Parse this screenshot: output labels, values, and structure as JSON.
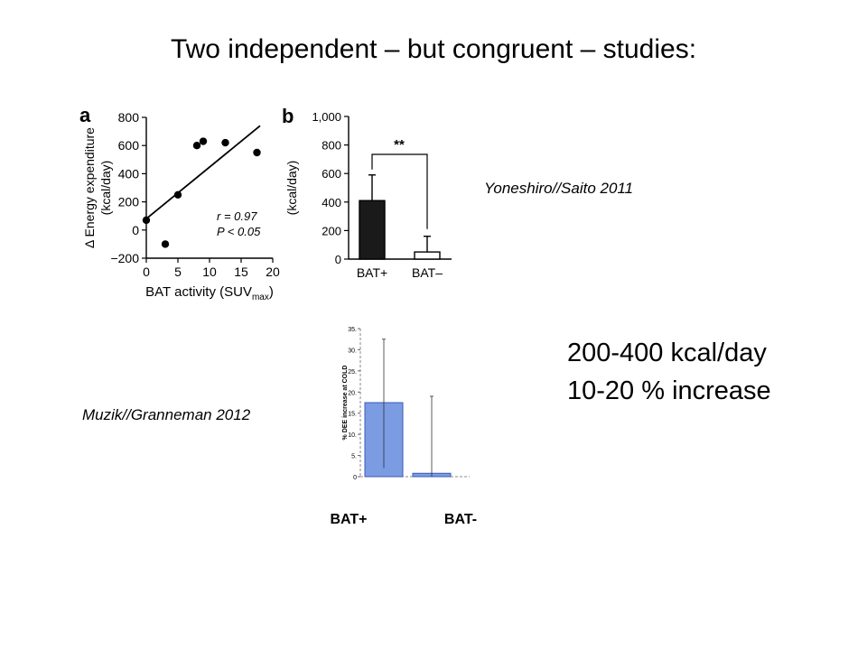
{
  "slide": {
    "title": "Two independent – but congruent – studies:",
    "caption_top": "Yoneshiro//Saito 2011",
    "caption_bottom": "Muzik//Granneman 2012",
    "highlight_line1": "200-400 kcal/day",
    "highlight_line2": "10-20 % increase"
  },
  "chart_data": [
    {
      "type": "scatter",
      "panel_label": "a",
      "xlabel": "BAT activity (SUVmax)",
      "ylabel_line1": "Δ Energy expenditure",
      "ylabel_line2": "(kcal/day)",
      "xlim": [
        0,
        20
      ],
      "ylim": [
        -200,
        800
      ],
      "xticks": [
        0,
        5,
        10,
        15,
        20
      ],
      "yticks": [
        -200,
        0,
        200,
        400,
        600,
        800
      ],
      "points": [
        {
          "x": 0,
          "y": 70
        },
        {
          "x": 3,
          "y": -100
        },
        {
          "x": 5,
          "y": 250
        },
        {
          "x": 8,
          "y": 600
        },
        {
          "x": 9,
          "y": 630
        },
        {
          "x": 12.5,
          "y": 620
        },
        {
          "x": 17.5,
          "y": 550
        }
      ],
      "fit_line": [
        {
          "x": 0,
          "y": 80
        },
        {
          "x": 18,
          "y": 740
        }
      ],
      "annotation_r": "r = 0.97",
      "annotation_p": "P < 0.05"
    },
    {
      "type": "bar",
      "panel_label": "b",
      "ylabel": "(kcal/day)",
      "ylim": [
        0,
        1000
      ],
      "yticks": [
        0,
        200,
        400,
        600,
        800,
        1000
      ],
      "ytick_labels": [
        "0",
        "200",
        "400",
        "600",
        "800",
        "1,000"
      ],
      "categories": [
        "BAT+",
        "BAT–"
      ],
      "values": [
        410,
        50
      ],
      "errors": [
        180,
        110
      ],
      "fills": [
        "#1a1a1a",
        "#ffffff"
      ],
      "significance": "**"
    },
    {
      "type": "bar",
      "ylabel": "% DEE increase at COLD",
      "ylim": [
        0,
        35
      ],
      "yticks": [
        0,
        5,
        10,
        15,
        20,
        25,
        30,
        35
      ],
      "ytick_labels": [
        "0",
        "5.",
        "10.",
        "15.",
        "20.",
        "25.",
        "30.",
        "35."
      ],
      "categories": [
        "BAT+",
        "BAT-"
      ],
      "values": [
        17.5,
        0.8
      ],
      "errors_up": [
        32.5,
        19
      ],
      "errors_down": [
        2,
        0
      ],
      "bar_color": "#7b9be3"
    }
  ]
}
